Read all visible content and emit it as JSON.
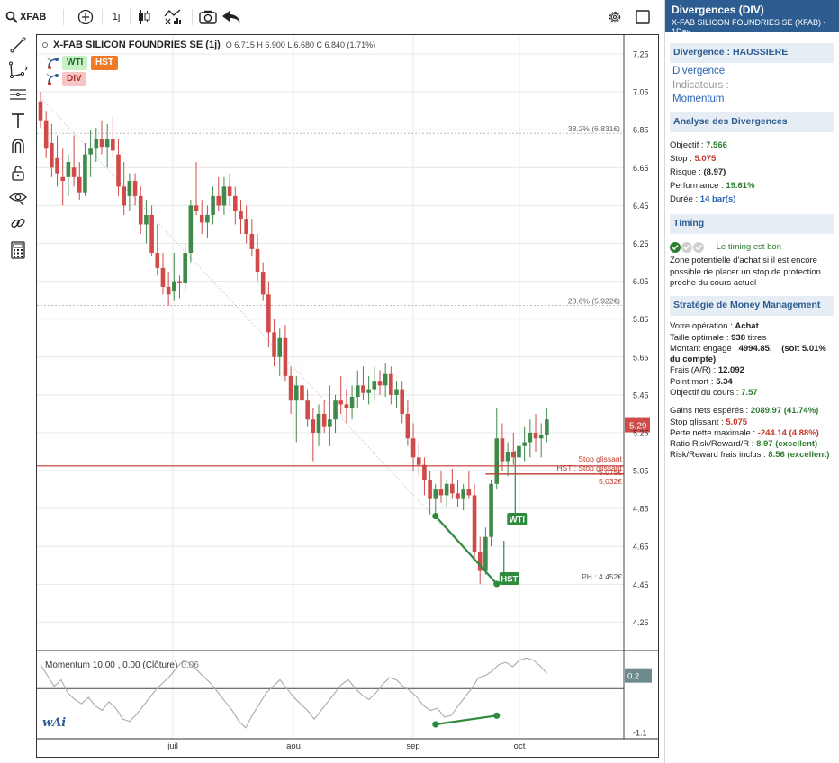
{
  "toolbar": {
    "symbol": "XFAB",
    "interval": "1j"
  },
  "chart": {
    "title": "X-FAB SILICON FOUNDRIES SE (1j)",
    "ohlc": "O 6.715 H 6.900 L 6.680 C 6.840 (1.71%)",
    "badges": {
      "wti": "WTI",
      "hst": "HST",
      "div": "DIV"
    },
    "fib_labels": [
      "38.2% (6.831€)",
      "23.6% (5.922€)"
    ],
    "stop_labels": [
      "Stop glissant",
      "HST : Stop glissant",
      "5.075€",
      "5.032€"
    ],
    "ph_label": "PH : 4.452€",
    "price_tag": "5.29",
    "pattern_labels": {
      "wti": "WTI",
      "hst": "HST"
    },
    "momentum_label": "Momentum 10.00 , 0.00 (Clôture)",
    "momentum_value": "0.06",
    "momentum_tag": "0.2",
    "momentum_ticks": [
      "-1.1"
    ],
    "logo": "wAi",
    "colors": {
      "up": "#3f8a4a",
      "down": "#d04a4a",
      "accent": "#2d5c90",
      "stop": "#c0392b",
      "divergence": "#2e8b3d"
    }
  },
  "chart_data": {
    "type": "candlestick",
    "ylim": [
      4.1,
      7.35
    ],
    "y_ticks": [
      "7.25",
      "7.05",
      "6.85",
      "6.65",
      "6.45",
      "6.25",
      "6.05",
      "5.85",
      "5.65",
      "5.45",
      "5.25",
      "5.05",
      "4.85",
      "4.65",
      "4.45",
      "4.25"
    ],
    "x_labels": [
      "juil",
      "aou",
      "sep",
      "oct"
    ],
    "ohlc": [
      [
        7.0,
        7.05,
        6.86,
        6.9
      ],
      [
        6.9,
        6.95,
        6.7,
        6.75
      ],
      [
        6.78,
        6.88,
        6.6,
        6.65
      ],
      [
        6.7,
        6.82,
        6.55,
        6.62
      ],
      [
        6.6,
        6.75,
        6.45,
        6.58
      ],
      [
        6.6,
        6.72,
        6.5,
        6.68
      ],
      [
        6.65,
        6.82,
        6.55,
        6.6
      ],
      [
        6.6,
        6.68,
        6.48,
        6.52
      ],
      [
        6.52,
        6.78,
        6.5,
        6.72
      ],
      [
        6.72,
        6.85,
        6.6,
        6.75
      ],
      [
        6.75,
        6.86,
        6.68,
        6.8
      ],
      [
        6.8,
        6.9,
        6.72,
        6.76
      ],
      [
        6.76,
        6.88,
        6.65,
        6.8
      ],
      [
        6.8,
        6.92,
        6.7,
        6.74
      ],
      [
        6.72,
        6.8,
        6.5,
        6.55
      ],
      [
        6.55,
        6.68,
        6.4,
        6.45
      ],
      [
        6.5,
        6.62,
        6.42,
        6.58
      ],
      [
        6.58,
        6.62,
        6.45,
        6.5
      ],
      [
        6.5,
        6.55,
        6.3,
        6.35
      ],
      [
        6.35,
        6.48,
        6.25,
        6.4
      ],
      [
        6.4,
        6.45,
        6.18,
        6.2
      ],
      [
        6.2,
        6.35,
        6.08,
        6.12
      ],
      [
        6.12,
        6.2,
        5.98,
        6.02
      ],
      [
        6.02,
        6.1,
        5.92,
        5.98
      ],
      [
        6.0,
        6.2,
        5.95,
        6.05
      ],
      [
        6.05,
        6.08,
        5.96,
        6.04
      ],
      [
        6.04,
        6.25,
        6.0,
        6.2
      ],
      [
        6.2,
        6.48,
        6.15,
        6.45
      ],
      [
        6.45,
        6.68,
        6.4,
        6.42
      ],
      [
        6.4,
        6.48,
        6.3,
        6.36
      ],
      [
        6.36,
        6.45,
        6.28,
        6.4
      ],
      [
        6.4,
        6.55,
        6.35,
        6.5
      ],
      [
        6.5,
        6.6,
        6.42,
        6.45
      ],
      [
        6.45,
        6.6,
        6.4,
        6.55
      ],
      [
        6.55,
        6.62,
        6.45,
        6.5
      ],
      [
        6.5,
        6.55,
        6.35,
        6.42
      ],
      [
        6.42,
        6.48,
        6.3,
        6.38
      ],
      [
        6.38,
        6.45,
        6.25,
        6.3
      ],
      [
        6.3,
        6.38,
        6.18,
        6.22
      ],
      [
        6.22,
        6.3,
        6.05,
        6.1
      ],
      [
        6.1,
        6.15,
        5.95,
        5.98
      ],
      [
        5.98,
        6.05,
        5.7,
        5.78
      ],
      [
        5.78,
        5.85,
        5.6,
        5.65
      ],
      [
        5.65,
        5.8,
        5.55,
        5.75
      ],
      [
        5.75,
        5.82,
        5.52,
        5.55
      ],
      [
        5.55,
        5.6,
        5.35,
        5.42
      ],
      [
        5.42,
        5.55,
        5.2,
        5.5
      ],
      [
        5.5,
        5.65,
        5.38,
        5.42
      ],
      [
        5.42,
        5.48,
        5.28,
        5.32
      ],
      [
        5.32,
        5.38,
        5.1,
        5.25
      ],
      [
        5.25,
        5.4,
        5.18,
        5.35
      ],
      [
        5.35,
        5.42,
        5.25,
        5.28
      ],
      [
        5.28,
        5.5,
        5.18,
        5.32
      ],
      [
        5.32,
        5.45,
        5.25,
        5.42
      ],
      [
        5.42,
        5.55,
        5.35,
        5.4
      ],
      [
        5.4,
        5.48,
        5.3,
        5.38
      ],
      [
        5.38,
        5.5,
        5.32,
        5.44
      ],
      [
        5.44,
        5.58,
        5.38,
        5.5
      ],
      [
        5.5,
        5.6,
        5.42,
        5.46
      ],
      [
        5.46,
        5.55,
        5.4,
        5.48
      ],
      [
        5.48,
        5.6,
        5.42,
        5.52
      ],
      [
        5.52,
        5.58,
        5.45,
        5.5
      ],
      [
        5.5,
        5.62,
        5.44,
        5.56
      ],
      [
        5.56,
        5.6,
        5.4,
        5.45
      ],
      [
        5.45,
        5.52,
        5.38,
        5.48
      ],
      [
        5.48,
        5.52,
        5.3,
        5.35
      ],
      [
        5.35,
        5.42,
        5.18,
        5.22
      ],
      [
        5.22,
        5.3,
        5.05,
        5.12
      ],
      [
        5.12,
        5.2,
        5.02,
        5.08
      ],
      [
        5.08,
        5.12,
        4.92,
        5.0
      ],
      [
        5.0,
        5.05,
        4.82,
        4.9
      ],
      [
        4.9,
        4.98,
        4.8,
        4.95
      ],
      [
        4.95,
        5.05,
        4.88,
        4.92
      ],
      [
        4.92,
        5.0,
        4.86,
        4.98
      ],
      [
        4.98,
        5.06,
        4.9,
        4.93
      ],
      [
        4.93,
        5.0,
        4.86,
        4.9
      ],
      [
        4.9,
        4.98,
        4.84,
        4.95
      ],
      [
        4.95,
        5.05,
        4.9,
        4.92
      ],
      [
        4.92,
        4.98,
        4.58,
        4.62
      ],
      [
        4.62,
        4.7,
        4.45,
        4.52
      ],
      [
        4.52,
        4.75,
        4.5,
        4.7
      ],
      [
        4.7,
        5.0,
        4.65,
        4.98
      ],
      [
        4.98,
        5.38,
        4.95,
        5.22
      ],
      [
        5.22,
        5.3,
        5.05,
        5.1
      ],
      [
        5.1,
        5.2,
        5.02,
        5.15
      ],
      [
        5.15,
        5.25,
        5.08,
        5.12
      ],
      [
        5.12,
        5.22,
        5.05,
        5.18
      ],
      [
        5.18,
        5.28,
        5.1,
        5.2
      ],
      [
        5.2,
        5.32,
        5.12,
        5.25
      ],
      [
        5.25,
        5.35,
        5.15,
        5.22
      ],
      [
        5.22,
        5.3,
        5.12,
        5.24
      ],
      [
        5.24,
        5.38,
        5.2,
        5.32
      ]
    ],
    "momentum": [
      0.45,
      0.2,
      -0.05,
      0.1,
      -0.2,
      -0.35,
      -0.45,
      -0.3,
      -0.5,
      -0.6,
      -0.4,
      -0.55,
      -0.8,
      -0.85,
      -0.7,
      -0.5,
      -0.3,
      -0.1,
      0.05,
      0.2,
      0.4,
      0.55,
      0.45,
      0.3,
      0.15,
      0.0,
      -0.2,
      -0.4,
      -0.6,
      -0.85,
      -1.0,
      -0.7,
      -0.45,
      -0.2,
      -0.05,
      0.1,
      -0.1,
      -0.3,
      -0.45,
      -0.6,
      -0.8,
      -0.6,
      -0.4,
      -0.2,
      0.0,
      0.1,
      -0.1,
      -0.25,
      -0.35,
      -0.2,
      0.0,
      0.15,
      0.1,
      -0.05,
      -0.15,
      -0.3,
      -0.5,
      -0.6,
      -0.55,
      -0.75,
      -0.72,
      -0.5,
      -0.3,
      -0.1,
      0.15,
      0.2,
      0.3,
      0.45,
      0.5,
      0.4,
      0.55,
      0.6,
      0.55,
      0.42,
      0.25
    ],
    "fib_levels": [
      6.831,
      5.922
    ],
    "stop_levels": [
      5.075,
      5.032
    ],
    "divergence": {
      "price_points": [
        [
          71,
          4.81
        ],
        [
          82,
          4.452
        ]
      ],
      "momentum_points": [
        [
          71,
          -0.92
        ],
        [
          82,
          -0.72
        ]
      ]
    }
  },
  "panel": {
    "title": "Divergences (DIV)",
    "subtitle": "X-FAB SILICON FOUNDRIES SE (XFAB) - 1Day",
    "sec1": "Divergence : HAUSSIERE",
    "div_items": [
      "Divergence",
      "Indicateurs :",
      "Momentum"
    ],
    "sec2": "Analyse des Divergences",
    "objectif_label": "Objectif : ",
    "objectif": "7.566",
    "stop_label": "Stop : ",
    "stop": "5.075",
    "risque_label": "Risque : ",
    "risque": "(8.97)",
    "perf_label": "Performance : ",
    "perf": "19.61%",
    "duree_label": "Durée : ",
    "duree": "14 bar(s)",
    "sec3": "Timing",
    "timing_status": "Le timing est bon",
    "timing_text": "Zone potentielle d'achat si il est encore possible de placer un stop de protection proche du cours actuel",
    "sec4": "Stratégie de Money Management",
    "op_label": "Votre opération : ",
    "op": "Achat",
    "taille_label": "Taille optimale : ",
    "taille": "938",
    "taille_unit": " titres",
    "montant_label": "Montant engagé : ",
    "montant": "4994.85,",
    "montant_pct": "(soit 5.01% du compte)",
    "frais_label": "Frais (A/R) : ",
    "frais": "12.092",
    "pm_label": "Point mort : ",
    "pm": "5.34",
    "obj_label": "Objectif du cours : ",
    "obj": "7.57",
    "gains_label": "Gains nets espérés : ",
    "gains": "2089.97 (41.74%)",
    "sg_label": "Stop glissant : ",
    "sg": "5.075",
    "perte_label": "Perte nette maximale : ",
    "perte": "-244.14 (4.88%)",
    "ratio_label": "Ratio Risk/Reward/R : ",
    "ratio": "8.97 (excellent)",
    "rr_label": "Risk/Reward frais inclus : ",
    "rr": "8.56 (excellent)"
  }
}
